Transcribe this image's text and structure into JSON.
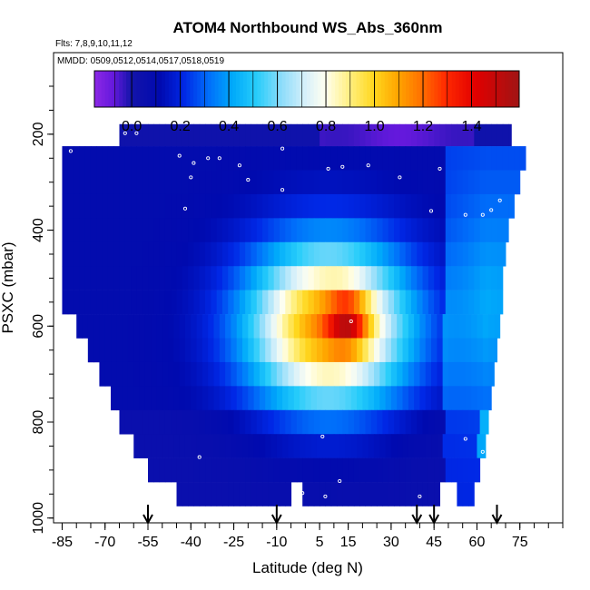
{
  "chart_data": {
    "type": "heatmap",
    "title": "ATOM4 Northbound WS_Abs_360nm",
    "subtitle_flights": "Flts: 7,8,9,10,11,12",
    "subtitle_dates": "MMDD: 0509,0512,0514,0517,0518,0519",
    "xlabel": "Latitude (deg N)",
    "ylabel": "PSXC (mbar)",
    "xlim": [
      -88,
      90
    ],
    "ylim": [
      1010,
      30
    ],
    "x_ticks": [
      -85,
      -70,
      -55,
      -40,
      -25,
      -10,
      5,
      15,
      30,
      45,
      60,
      75
    ],
    "y_ticks": [
      200,
      400,
      600,
      800,
      1000
    ],
    "colorbar": {
      "range": [
        -0.15,
        1.6
      ],
      "ticks": [
        0.0,
        0.2,
        0.4,
        0.6,
        0.8,
        1.0,
        1.2,
        1.4
      ],
      "tick_labels": [
        "0.0",
        "0.2",
        "0.4",
        "0.6",
        "0.8",
        "1.0",
        "1.2",
        "1.4"
      ]
    },
    "arrows_latitude": [
      -55,
      -10,
      39,
      45,
      67
    ],
    "pressure_levels": [
      200,
      250,
      300,
      350,
      400,
      450,
      500,
      550,
      600,
      650,
      700,
      750,
      800,
      850,
      900,
      950
    ],
    "level_lat_range": [
      [
        -65,
        72
      ],
      [
        -85,
        77
      ],
      [
        -85,
        75
      ],
      [
        -85,
        73
      ],
      [
        -85,
        71
      ],
      [
        -85,
        70
      ],
      [
        -85,
        69
      ],
      [
        -85,
        69
      ],
      [
        -80,
        68
      ],
      [
        -76,
        67
      ],
      [
        -72,
        66
      ],
      [
        -68,
        65
      ],
      [
        -65,
        64
      ],
      [
        -60,
        63
      ],
      [
        -55,
        61
      ],
      [
        -45,
        59
      ]
    ],
    "gaps": [
      {
        "level": 950,
        "lat": [
          -5,
          0
        ]
      },
      {
        "level": 950,
        "lat": [
          47,
          54
        ]
      }
    ],
    "grid": false
  }
}
